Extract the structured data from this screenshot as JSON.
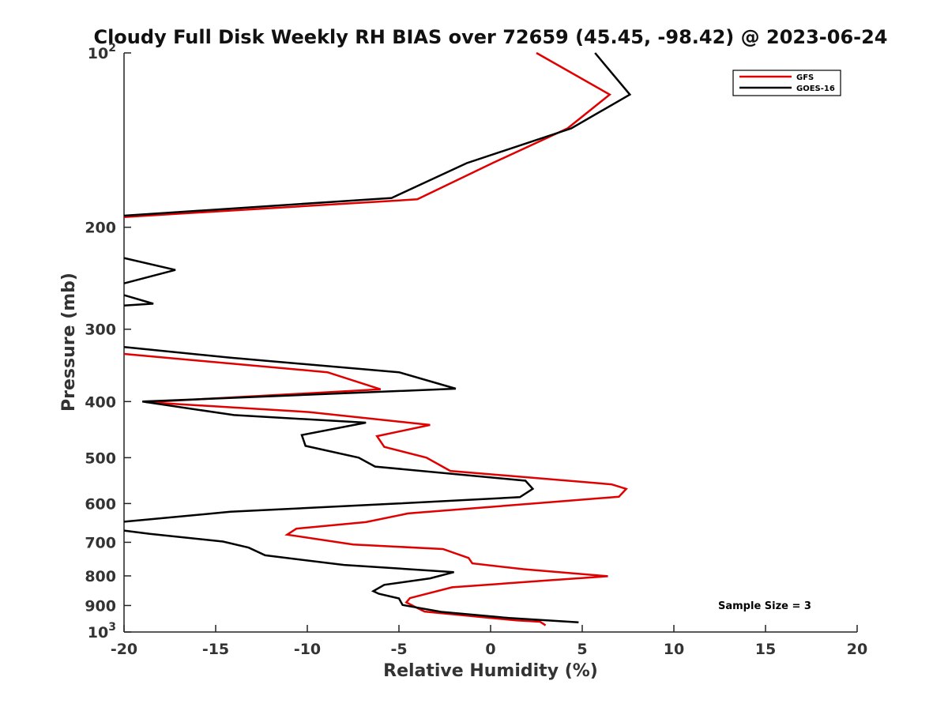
{
  "chart_data": {
    "type": "line",
    "title": "Cloudy Full Disk Weekly RH BIAS over 72659 (45.45, -98.42) @ 2023-06-24",
    "xlabel": "Relative Humidity (%)",
    "ylabel": "Pressure (mb)",
    "xlim": [
      -20,
      20
    ],
    "ylim": [
      100,
      1000
    ],
    "yscale": "log",
    "y_reversed": true,
    "grid": false,
    "legend_position": "top-right",
    "x_ticks": [
      -20,
      -15,
      -10,
      -5,
      0,
      5,
      10,
      15,
      20
    ],
    "x_tick_labels": [
      "-20",
      "-15",
      "-10",
      "-5",
      "0",
      "5",
      "10",
      "15",
      "20"
    ],
    "y_ticks": [
      {
        "value": 100,
        "base": "10",
        "exp": "2"
      },
      {
        "value": 200,
        "label": "200"
      },
      {
        "value": 300,
        "label": "300"
      },
      {
        "value": 400,
        "label": "400"
      },
      {
        "value": 500,
        "label": "500"
      },
      {
        "value": 600,
        "label": "600"
      },
      {
        "value": 700,
        "label": "700"
      },
      {
        "value": 800,
        "label": "800"
      },
      {
        "value": 900,
        "label": "900"
      },
      {
        "value": 1000,
        "base": "10",
        "exp": "3"
      }
    ],
    "annotation": "Sample Size = 3",
    "series": [
      {
        "name": "GFS",
        "color": "#e00000",
        "points": [
          [
            2.5,
            100
          ],
          [
            6.5,
            118
          ],
          [
            4.2,
            135
          ],
          [
            0.1,
            155
          ],
          [
            -4,
            179
          ],
          [
            -20,
            192
          ],
          [
            null,
            192
          ],
          [
            -20,
            331
          ],
          [
            -8.9,
            356
          ],
          [
            -6,
            381
          ],
          [
            -18.8,
            401
          ],
          [
            -9.9,
            417
          ],
          [
            -3.3,
            439
          ],
          [
            -6.2,
            459
          ],
          [
            -5.8,
            479
          ],
          [
            -3.5,
            500
          ],
          [
            -2.2,
            527
          ],
          [
            6.6,
            556
          ],
          [
            7.4,
            566
          ],
          [
            7,
            584
          ],
          [
            -4.5,
            624
          ],
          [
            -6.8,
            646
          ],
          [
            -10.6,
            663
          ],
          [
            -11.1,
            679
          ],
          [
            -7.5,
            706
          ],
          [
            -2.6,
            719
          ],
          [
            -1.2,
            745
          ],
          [
            -1,
            761
          ],
          [
            1.8,
            779
          ],
          [
            6.4,
            801
          ],
          [
            3,
            815
          ],
          [
            -2.1,
            837
          ],
          [
            -4.4,
            874
          ],
          [
            -4.6,
            889
          ],
          [
            -4,
            909
          ],
          [
            -3.6,
            922
          ],
          [
            1.4,
            955
          ],
          [
            2.7,
            960
          ],
          [
            3,
            974
          ]
        ]
      },
      {
        "name": "GOES-16",
        "color": "#000000",
        "points": [
          [
            5.7,
            100
          ],
          [
            7.6,
            118
          ],
          [
            4.4,
            135
          ],
          [
            -1.3,
            155
          ],
          [
            -5.4,
            178
          ],
          [
            -20,
            191
          ],
          [
            null,
            191
          ],
          [
            -20,
            226
          ],
          [
            -17.2,
            237
          ],
          [
            -20,
            250
          ],
          [
            null,
            250
          ],
          [
            -20,
            262
          ],
          [
            -18.4,
            271
          ],
          [
            -20,
            273
          ],
          [
            null,
            273
          ],
          [
            -20,
            322
          ],
          [
            -14.2,
            336
          ],
          [
            -5,
            356
          ],
          [
            -1.9,
            380
          ],
          [
            -19,
            400
          ],
          [
            -14,
            422
          ],
          [
            -6.8,
            435
          ],
          [
            -10.3,
            457
          ],
          [
            -10.1,
            477
          ],
          [
            -7.2,
            500
          ],
          [
            -6.3,
            518
          ],
          [
            1.9,
            548
          ],
          [
            2.3,
            566
          ],
          [
            1.6,
            585
          ],
          [
            -5.1,
            600
          ],
          [
            -14.2,
            620
          ],
          [
            -18.6,
            639
          ],
          [
            -20,
            645
          ],
          [
            null,
            645
          ],
          [
            -20,
            668
          ],
          [
            -18.6,
            677
          ],
          [
            -14.6,
            698
          ],
          [
            -13.2,
            715
          ],
          [
            -12.3,
            737
          ],
          [
            -8,
            766
          ],
          [
            -2,
            788
          ],
          [
            -3.3,
            808
          ],
          [
            -5.8,
            829
          ],
          [
            -6.4,
            850
          ],
          [
            -6.1,
            859
          ],
          [
            -5,
            875
          ],
          [
            -4.8,
            898
          ],
          [
            -2.7,
            923
          ],
          [
            1,
            946
          ],
          [
            4.8,
            962
          ]
        ]
      }
    ]
  }
}
